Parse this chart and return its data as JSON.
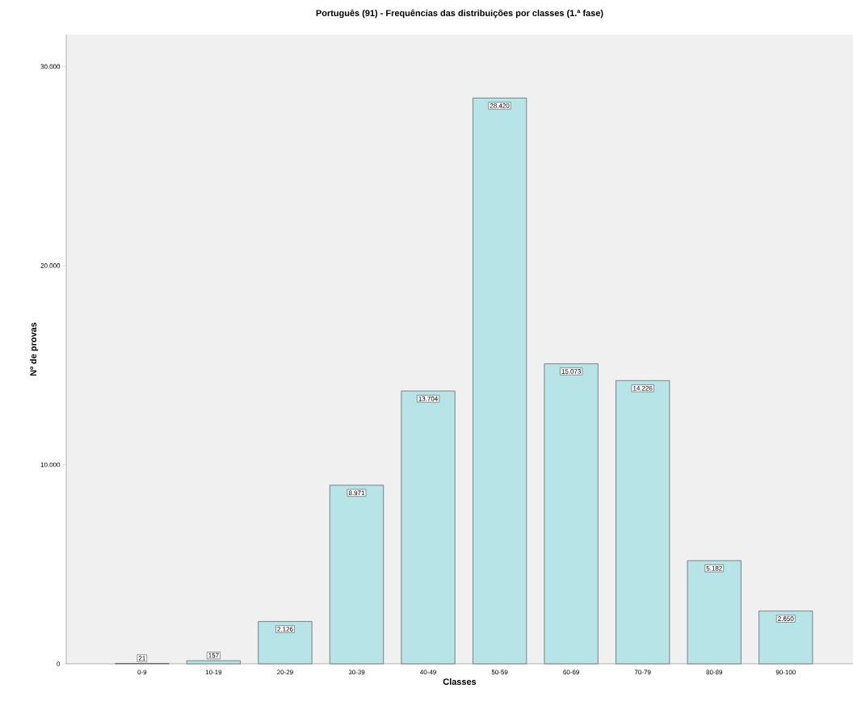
{
  "chart_data": {
    "type": "bar",
    "title": "Português (91) - Frequências das distribuições por classes (1.ª fase)",
    "xlabel": "Classes",
    "ylabel": "Nº de provas",
    "categories": [
      "0-9",
      "10-19",
      "20-29",
      "30-39",
      "40-49",
      "50-59",
      "60-69",
      "70-79",
      "80-89",
      "90-100"
    ],
    "values": [
      21,
      157,
      2126,
      8971,
      13704,
      28420,
      15073,
      14226,
      5182,
      2650
    ],
    "value_labels": [
      "21",
      "157",
      "2.126",
      "8.971",
      "13.704",
      "28.420",
      "15.073",
      "14.226",
      "5.182",
      "2.650"
    ],
    "color": "#b7e4e6",
    "ylim": [
      0,
      31600
    ],
    "yticks": [
      0,
      {
        "value": 10000,
        "label": "10.000"
      },
      {
        "value": 20000,
        "label": "20.000"
      },
      {
        "value": 30000,
        "label": "30.000"
      }
    ],
    "grid": false
  }
}
